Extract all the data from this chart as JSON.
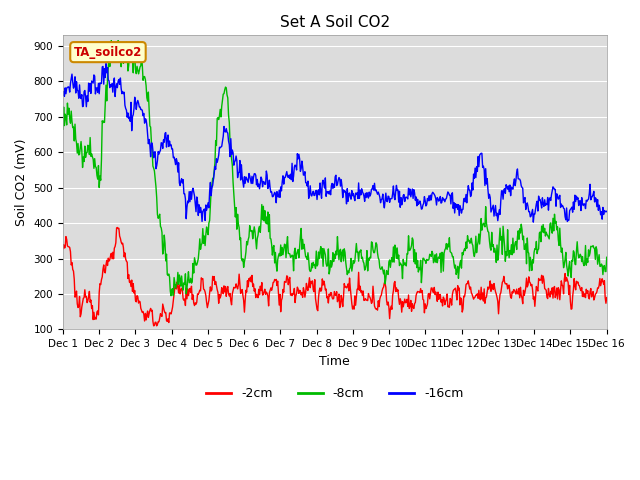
{
  "title": "Set A Soil CO2",
  "ylabel": "Soil CO2 (mV)",
  "xlabel": "Time",
  "ylim": [
    100,
    930
  ],
  "yticks": [
    100,
    200,
    300,
    400,
    500,
    600,
    700,
    800,
    900
  ],
  "series": [
    "-2cm",
    "-8cm",
    "-16cm"
  ],
  "colors": [
    "#ff0000",
    "#00bb00",
    "#0000ff"
  ],
  "background_color": "#dcdcdc",
  "legend_label": "TA_soilco2",
  "legend_box_color": "#ffffcc",
  "legend_box_edge": "#cc8800",
  "legend_text_color": "#cc0000",
  "xtick_labels": [
    "Dec 1",
    "Dec 2",
    "Dec 3",
    "Dec 4",
    "Dec 5",
    "Dec 6",
    "Dec 7",
    "Dec 8",
    "Dec 9",
    "Dec 10",
    "Dec 11",
    "Dec 12",
    "Dec 13",
    "Dec 14",
    "Dec 15",
    "Dec 16"
  ],
  "linewidth": 1.0,
  "title_fontsize": 11,
  "axis_fontsize": 9,
  "tick_fontsize": 7.5,
  "legend_fontsize": 9
}
